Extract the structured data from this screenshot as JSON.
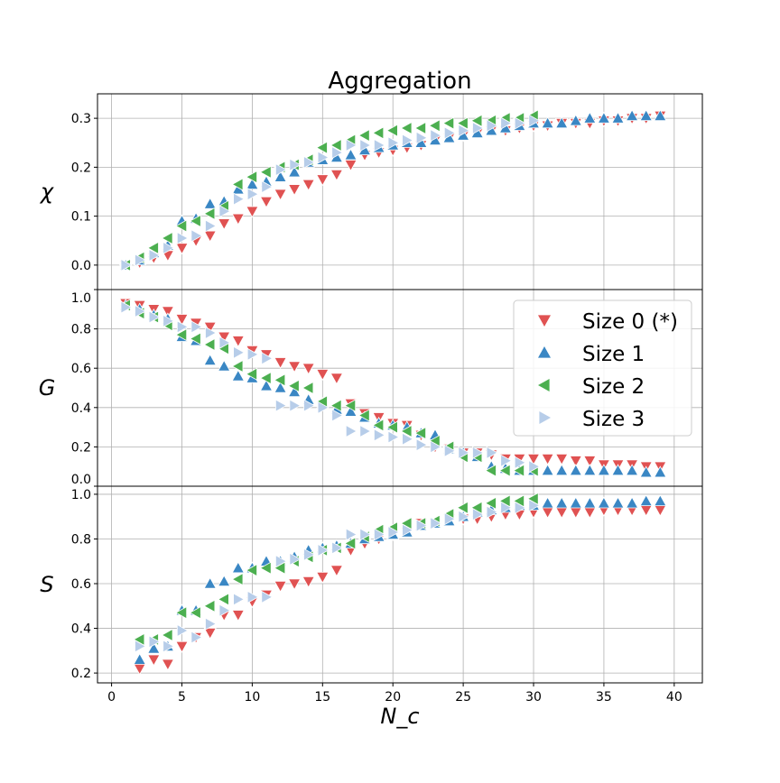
{
  "chart_data": {
    "type": "scatter",
    "title": "Aggregation",
    "xlabel": "N_c",
    "xlim": [
      -1,
      42
    ],
    "xticks": [
      0,
      5,
      10,
      15,
      20,
      25,
      30,
      35,
      40
    ],
    "grid": true,
    "legend": {
      "placement": "right of middle panel",
      "entries": [
        "Size 0 (*)",
        "Size 1",
        "Size 2",
        "Size 3"
      ]
    },
    "colors": [
      "#e05252",
      "#3a87c4",
      "#4caf50",
      "#b7cde9"
    ],
    "markers": [
      "triangle-down",
      "triangle-up",
      "triangle-left",
      "triangle-right"
    ],
    "panels": [
      {
        "ylabel": "χ",
        "ylim": [
          -0.05,
          0.35
        ],
        "yticks": [
          0.0,
          0.1,
          0.2,
          0.3
        ],
        "yticklabels": [
          "0.0",
          "0.1",
          "0.2",
          "0.3"
        ],
        "series": [
          {
            "name": "Size 0 (*)",
            "x0": 1,
            "values": [
              0,
              0.005,
              0.015,
              0.02,
              0.035,
              0.05,
              0.06,
              0.085,
              0.095,
              0.11,
              0.13,
              0.145,
              0.155,
              0.165,
              0.175,
              0.185,
              0.205,
              0.225,
              0.23,
              0.235,
              0.24,
              0.245,
              0.255,
              0.26,
              0.265,
              0.27,
              0.275,
              0.275,
              0.28,
              0.285,
              0.285,
              0.29,
              0.29,
              0.29,
              0.295,
              0.295,
              0.3,
              0.3,
              0.305
            ]
          },
          {
            "name": "Size 1",
            "x0": 1,
            "values": [
              0,
              0.01,
              0.025,
              0.04,
              0.09,
              0.095,
              0.125,
              0.13,
              0.155,
              0.165,
              0.17,
              0.18,
              0.19,
              0.21,
              0.215,
              0.22,
              0.225,
              0.235,
              0.24,
              0.245,
              0.25,
              0.25,
              0.255,
              0.26,
              0.265,
              0.27,
              0.275,
              0.28,
              0.285,
              0.29,
              0.29,
              0.29,
              0.295,
              0.3,
              0.3,
              0.3,
              0.305,
              0.305,
              0.305
            ]
          },
          {
            "name": "Size 2",
            "x0": 1,
            "values": [
              0,
              0.015,
              0.035,
              0.055,
              0.08,
              0.09,
              0.105,
              0.12,
              0.165,
              0.18,
              0.19,
              0.2,
              0.205,
              0.215,
              0.24,
              0.245,
              0.255,
              0.265,
              0.27,
              0.275,
              0.28,
              0.28,
              0.285,
              0.29,
              0.29,
              0.295,
              0.295,
              0.3,
              0.3,
              0.305
            ]
          },
          {
            "name": "Size 3",
            "x0": 1,
            "values": [
              0,
              0.01,
              0.02,
              0.035,
              0.055,
              0.06,
              0.08,
              0.11,
              0.135,
              0.145,
              0.16,
              0.195,
              0.205,
              0.21,
              0.22,
              0.23,
              0.245,
              0.245,
              0.245,
              0.25,
              0.255,
              0.26,
              0.265,
              0.27,
              0.275,
              0.28,
              0.285,
              0.29,
              0.29,
              0.295
            ]
          }
        ]
      },
      {
        "ylabel": "G",
        "ylim": [
          0,
          1
        ],
        "yticks": [
          0.0,
          0.2,
          0.4,
          0.6,
          0.8,
          1.0
        ],
        "yticklabels": [
          "0.0",
          "0.2",
          "0.4",
          "0.6",
          "0.8",
          "1.0"
        ],
        "series": [
          {
            "name": "Size 0 (*)",
            "x0": 1,
            "values": [
              0.93,
              0.92,
              0.9,
              0.89,
              0.85,
              0.83,
              0.81,
              0.76,
              0.74,
              0.69,
              0.67,
              0.63,
              0.61,
              0.6,
              0.57,
              0.55,
              0.42,
              0.37,
              0.35,
              0.32,
              0.31,
              0.26,
              0.2,
              0.19,
              0.17,
              0.17,
              0.16,
              0.14,
              0.14,
              0.14,
              0.14,
              0.14,
              0.13,
              0.13,
              0.11,
              0.11,
              0.11,
              0.1,
              0.1
            ]
          },
          {
            "name": "Size 1",
            "x0": 1,
            "values": [
              0.92,
              0.9,
              0.87,
              0.85,
              0.76,
              0.74,
              0.64,
              0.61,
              0.56,
              0.55,
              0.51,
              0.5,
              0.48,
              0.44,
              0.42,
              0.39,
              0.38,
              0.35,
              0.32,
              0.31,
              0.3,
              0.27,
              0.26,
              0.19,
              0.17,
              0.15,
              0.1,
              0.09,
              0.08,
              0.08,
              0.08,
              0.08,
              0.08,
              0.08,
              0.08,
              0.08,
              0.08,
              0.07,
              0.07
            ]
          },
          {
            "name": "Size 2",
            "x0": 1,
            "values": [
              0.92,
              0.88,
              0.86,
              0.82,
              0.77,
              0.75,
              0.72,
              0.7,
              0.61,
              0.57,
              0.55,
              0.54,
              0.51,
              0.5,
              0.43,
              0.41,
              0.41,
              0.36,
              0.31,
              0.3,
              0.28,
              0.27,
              0.23,
              0.2,
              0.15,
              0.15,
              0.08,
              0.08,
              0.08,
              0.08
            ]
          },
          {
            "name": "Size 3",
            "x0": 1,
            "values": [
              0.91,
              0.89,
              0.86,
              0.84,
              0.81,
              0.81,
              0.78,
              0.73,
              0.68,
              0.67,
              0.65,
              0.41,
              0.41,
              0.41,
              0.4,
              0.36,
              0.28,
              0.28,
              0.26,
              0.25,
              0.24,
              0.21,
              0.2,
              0.18,
              0.17,
              0.17,
              0.17,
              0.13,
              0.12,
              0.1
            ]
          }
        ]
      },
      {
        "ylabel": "S",
        "ylim": [
          0.156,
          1.036
        ],
        "yticks": [
          0.2,
          0.4,
          0.6,
          0.8,
          1.0
        ],
        "yticklabels": [
          "0.2",
          "0.4",
          "0.6",
          "0.8",
          "1.0"
        ],
        "series": [
          {
            "name": "Size 0 (*)",
            "x0": 2,
            "values": [
              0.22,
              0.26,
              0.24,
              0.32,
              0.36,
              0.38,
              0.46,
              0.46,
              0.52,
              0.55,
              0.59,
              0.6,
              0.61,
              0.63,
              0.66,
              0.75,
              0.78,
              0.8,
              0.82,
              0.83,
              0.87,
              0.87,
              0.89,
              0.89,
              0.89,
              0.9,
              0.91,
              0.91,
              0.92,
              0.92,
              0.92,
              0.92,
              0.92,
              0.93,
              0.93,
              0.93,
              0.93,
              0.93
            ]
          },
          {
            "name": "Size 1",
            "x0": 2,
            "values": [
              0.26,
              0.31,
              0.32,
              0.48,
              0.48,
              0.6,
              0.61,
              0.67,
              0.67,
              0.7,
              0.7,
              0.72,
              0.75,
              0.76,
              0.77,
              0.78,
              0.8,
              0.81,
              0.82,
              0.83,
              0.86,
              0.87,
              0.88,
              0.9,
              0.92,
              0.93,
              0.94,
              0.95,
              0.95,
              0.96,
              0.96,
              0.96,
              0.96,
              0.96,
              0.96,
              0.96,
              0.97,
              0.97
            ]
          },
          {
            "name": "Size 2",
            "x0": 2,
            "values": [
              0.35,
              0.35,
              0.37,
              0.47,
              0.47,
              0.5,
              0.53,
              0.62,
              0.66,
              0.67,
              0.67,
              0.7,
              0.72,
              0.75,
              0.76,
              0.78,
              0.81,
              0.84,
              0.85,
              0.87,
              0.87,
              0.88,
              0.91,
              0.94,
              0.94,
              0.96,
              0.97,
              0.97,
              0.98
            ]
          },
          {
            "name": "Size 3",
            "x0": 2,
            "values": [
              0.32,
              0.34,
              0.32,
              0.39,
              0.36,
              0.42,
              0.48,
              0.53,
              0.54,
              0.54,
              0.7,
              0.71,
              0.73,
              0.75,
              0.76,
              0.82,
              0.82,
              0.82,
              0.83,
              0.84,
              0.86,
              0.87,
              0.89,
              0.9,
              0.91,
              0.92,
              0.94,
              0.94,
              0.95
            ]
          }
        ]
      }
    ]
  }
}
